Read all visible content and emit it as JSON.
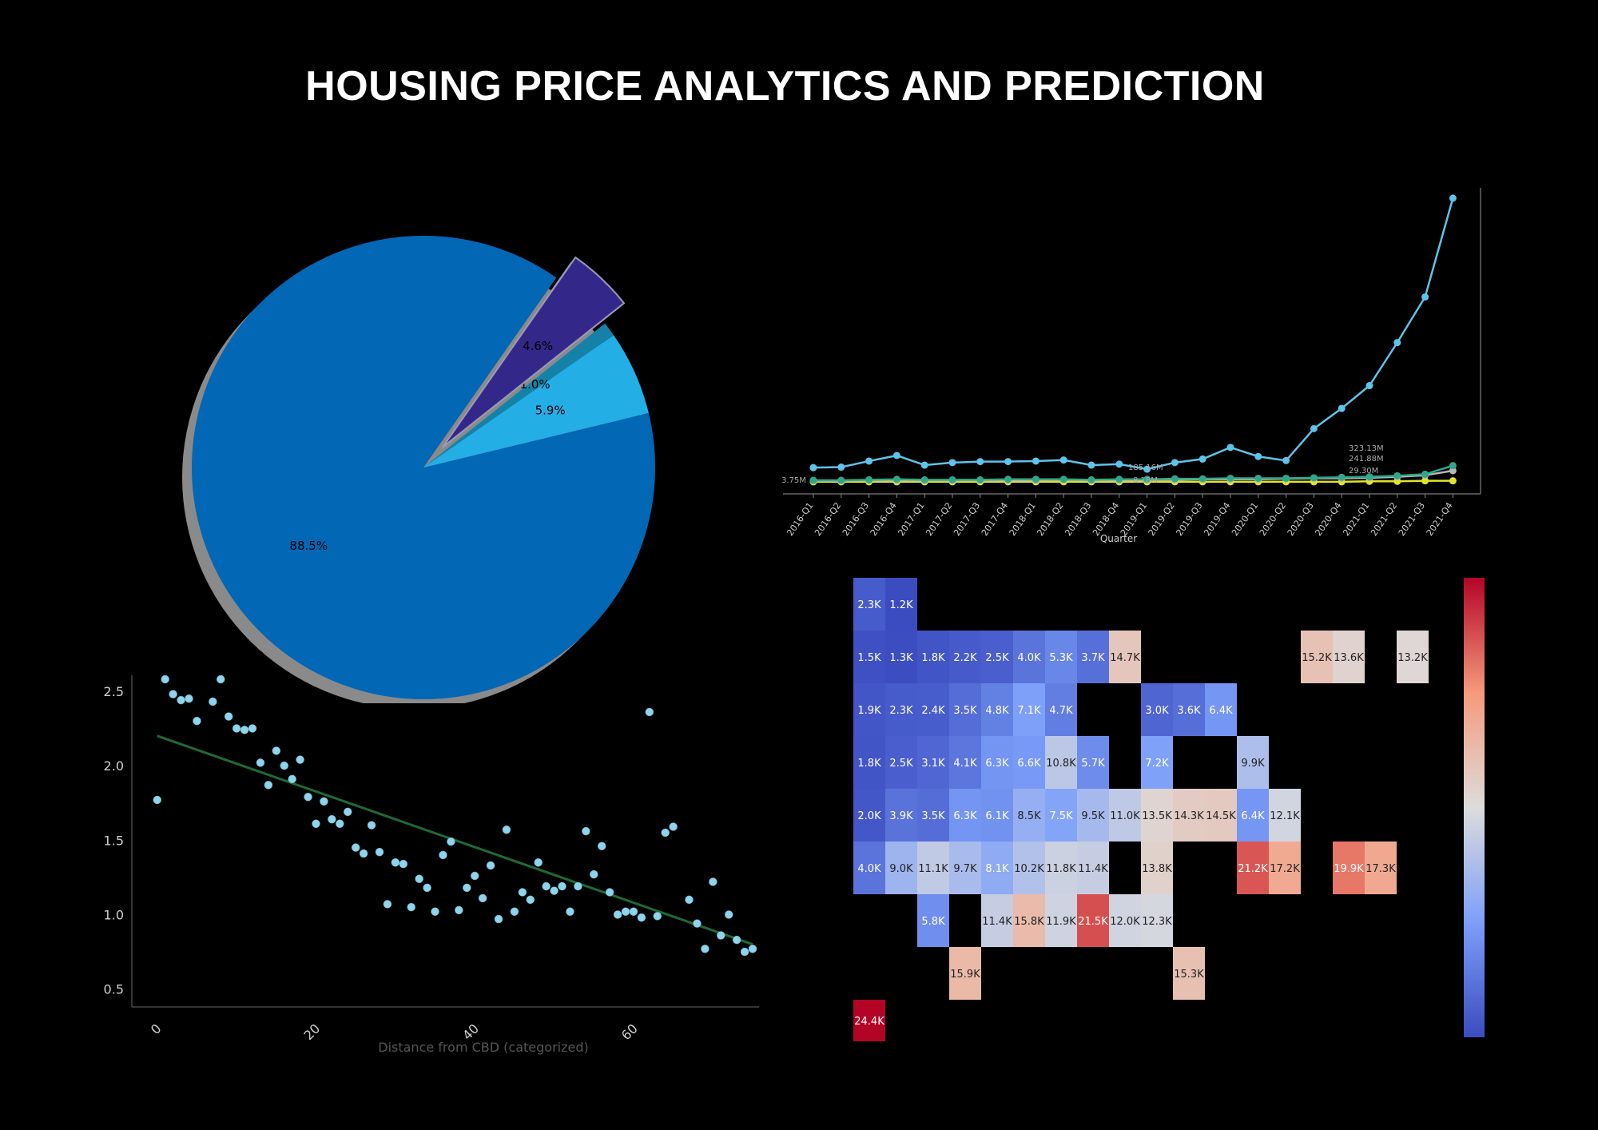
{
  "page": {
    "title": "HOUSING PRICE ANALYTICS AND PREDICTION"
  },
  "chart_data": [
    {
      "type": "pie",
      "labels": [
        "88.5%",
        "5.9%",
        "1.0%",
        "4.6%"
      ],
      "values": [
        88.5,
        5.9,
        1.0,
        4.6
      ],
      "colors": [
        "#0267b5",
        "#24aee6",
        "#1482a8",
        "#33288a"
      ],
      "exploded": [
        false,
        false,
        false,
        true
      ],
      "shadow": true
    },
    {
      "type": "line",
      "x": [
        "2016-Q1",
        "2016-Q2",
        "2016-Q3",
        "2016-Q4",
        "2017-Q1",
        "2017-Q2",
        "2017-Q3",
        "2017-Q4",
        "2018-Q1",
        "2018-Q2",
        "2018-Q3",
        "2018-Q4",
        "2019-Q1",
        "2019-Q2",
        "2019-Q3",
        "2019-Q4",
        "2020-Q1",
        "2020-Q2",
        "2020-Q3",
        "2020-Q4",
        "2021-Q1",
        "2021-Q2",
        "2021-Q3",
        "2021-Q4"
      ],
      "xlabel": "Quarter",
      "series": [
        {
          "color": "#5ec3ea",
          "values": [
            28,
            29,
            41,
            52,
            33,
            38,
            40,
            40,
            41,
            43,
            33,
            35,
            25,
            38,
            45,
            68,
            50,
            42,
            105,
            145,
            190,
            275,
            365,
            560
          ]
        },
        {
          "color": "#2fa88a",
          "values": [
            3,
            3,
            4,
            5,
            4,
            4,
            4,
            5,
            5,
            5,
            4,
            5,
            5,
            6,
            6,
            7,
            7,
            7,
            8,
            9,
            10,
            12,
            15,
            32
          ]
        },
        {
          "color": "#b8b8b8",
          "values": [
            2,
            2,
            3,
            3,
            3,
            3,
            3,
            3,
            3,
            4,
            3,
            3,
            4,
            4,
            5,
            5,
            5,
            6,
            7,
            7,
            8,
            10,
            13,
            22
          ]
        },
        {
          "color": "#e3e32a",
          "values": [
            0,
            0,
            0,
            0,
            0,
            0,
            0,
            0,
            0,
            0,
            0,
            0,
            0,
            0,
            0,
            0,
            0,
            0,
            0,
            0,
            1,
            1,
            2,
            2
          ]
        }
      ],
      "annotations": [
        "3.75M",
        "185.16M",
        "8.18M",
        "323.13M",
        "241.88M",
        "29.30M"
      ]
    },
    {
      "type": "scatter",
      "xlabel": "Distance from CBD (categorized)",
      "x_ticks": [
        "0",
        "20",
        "40",
        "60"
      ],
      "y_ticks": [
        "0.5",
        "1.0",
        "1.5",
        "2.0",
        "2.5"
      ],
      "xlim": [
        -4,
        75
      ],
      "ylim": [
        0.38,
        2.58
      ],
      "point_color": "#8fd3ee",
      "line_color": "#1e6a35",
      "trend": {
        "x": [
          0,
          75
        ],
        "y": [
          2.2,
          0.8
        ]
      },
      "points": [
        [
          0,
          1.77
        ],
        [
          1,
          2.58
        ],
        [
          2,
          2.48
        ],
        [
          3,
          2.44
        ],
        [
          4,
          2.45
        ],
        [
          5,
          2.3
        ],
        [
          7,
          2.43
        ],
        [
          8,
          2.58
        ],
        [
          9,
          2.33
        ],
        [
          10,
          2.25
        ],
        [
          11,
          2.24
        ],
        [
          12,
          2.25
        ],
        [
          13,
          2.02
        ],
        [
          14,
          1.87
        ],
        [
          15,
          2.1
        ],
        [
          16,
          2.0
        ],
        [
          17,
          1.91
        ],
        [
          18,
          2.04
        ],
        [
          19,
          1.79
        ],
        [
          20,
          1.61
        ],
        [
          21,
          1.76
        ],
        [
          22,
          1.64
        ],
        [
          23,
          1.61
        ],
        [
          24,
          1.69
        ],
        [
          25,
          1.45
        ],
        [
          26,
          1.41
        ],
        [
          27,
          1.6
        ],
        [
          28,
          1.42
        ],
        [
          29,
          1.07
        ],
        [
          30,
          1.35
        ],
        [
          31,
          1.34
        ],
        [
          32,
          1.05
        ],
        [
          33,
          1.24
        ],
        [
          34,
          1.18
        ],
        [
          35,
          1.02
        ],
        [
          36,
          1.4
        ],
        [
          37,
          1.49
        ],
        [
          38,
          1.03
        ],
        [
          39,
          1.18
        ],
        [
          40,
          1.26
        ],
        [
          41,
          1.11
        ],
        [
          42,
          1.33
        ],
        [
          43,
          0.97
        ],
        [
          44,
          1.57
        ],
        [
          45,
          1.02
        ],
        [
          46,
          1.15
        ],
        [
          47,
          1.1
        ],
        [
          48,
          1.35
        ],
        [
          49,
          1.19
        ],
        [
          50,
          1.16
        ],
        [
          51,
          1.19
        ],
        [
          52,
          1.02
        ],
        [
          53,
          1.19
        ],
        [
          54,
          1.56
        ],
        [
          55,
          1.27
        ],
        [
          56,
          1.46
        ],
        [
          57,
          1.15
        ],
        [
          58,
          1.0
        ],
        [
          59,
          1.02
        ],
        [
          60,
          1.02
        ],
        [
          61,
          0.98
        ],
        [
          62,
          2.36
        ],
        [
          63,
          0.99
        ],
        [
          64,
          1.55
        ],
        [
          65,
          1.59
        ],
        [
          67,
          1.1
        ],
        [
          68,
          0.94
        ],
        [
          69,
          0.77
        ],
        [
          70,
          1.22
        ],
        [
          71,
          0.86
        ],
        [
          72,
          1.0
        ],
        [
          73,
          0.83
        ],
        [
          74,
          0.75
        ],
        [
          75,
          0.77
        ]
      ]
    },
    {
      "type": "heatmap",
      "colorbar": true,
      "cells": [
        [
          0,
          0,
          2.3,
          "2.3K"
        ],
        [
          0,
          1,
          1.2,
          "1.2K"
        ],
        [
          1,
          0,
          1.5,
          "1.5K"
        ],
        [
          1,
          1,
          1.3,
          "1.3K"
        ],
        [
          1,
          2,
          1.8,
          "1.8K"
        ],
        [
          1,
          3,
          2.2,
          "2.2K"
        ],
        [
          1,
          4,
          2.5,
          "2.5K"
        ],
        [
          1,
          5,
          4.0,
          "4.0K"
        ],
        [
          1,
          6,
          5.3,
          "5.3K"
        ],
        [
          1,
          7,
          3.7,
          "3.7K"
        ],
        [
          1,
          8,
          14.7,
          "14.7K"
        ],
        [
          1,
          14,
          15.2,
          "15.2K"
        ],
        [
          1,
          15,
          13.6,
          "13.6K"
        ],
        [
          1,
          17,
          13.2,
          "13.2K"
        ],
        [
          2,
          0,
          1.9,
          "1.9K"
        ],
        [
          2,
          1,
          2.3,
          "2.3K"
        ],
        [
          2,
          2,
          2.4,
          "2.4K"
        ],
        [
          2,
          3,
          3.5,
          "3.5K"
        ],
        [
          2,
          4,
          4.8,
          "4.8K"
        ],
        [
          2,
          5,
          7.1,
          "7.1K"
        ],
        [
          2,
          6,
          4.7,
          "4.7K"
        ],
        [
          2,
          9,
          3.0,
          "3.0K"
        ],
        [
          2,
          10,
          3.6,
          "3.6K"
        ],
        [
          2,
          11,
          6.4,
          "6.4K"
        ],
        [
          3,
          0,
          1.8,
          "1.8K"
        ],
        [
          3,
          1,
          2.5,
          "2.5K"
        ],
        [
          3,
          2,
          3.1,
          "3.1K"
        ],
        [
          3,
          3,
          4.1,
          "4.1K"
        ],
        [
          3,
          4,
          6.3,
          "6.3K"
        ],
        [
          3,
          5,
          6.6,
          "6.6K"
        ],
        [
          3,
          6,
          10.8,
          "10.8K"
        ],
        [
          3,
          7,
          5.7,
          "5.7K"
        ],
        [
          3,
          9,
          7.2,
          "7.2K"
        ],
        [
          3,
          12,
          9.9,
          "9.9K"
        ],
        [
          4,
          0,
          2.0,
          "2.0K"
        ],
        [
          4,
          1,
          3.9,
          "3.9K"
        ],
        [
          4,
          2,
          3.5,
          "3.5K"
        ],
        [
          4,
          3,
          6.3,
          "6.3K"
        ],
        [
          4,
          4,
          6.1,
          "6.1K"
        ],
        [
          4,
          5,
          8.5,
          "8.5K"
        ],
        [
          4,
          6,
          7.5,
          "7.5K"
        ],
        [
          4,
          7,
          9.5,
          "9.5K"
        ],
        [
          4,
          8,
          11.0,
          "11.0K"
        ],
        [
          4,
          9,
          13.5,
          "13.5K"
        ],
        [
          4,
          10,
          14.3,
          "14.3K"
        ],
        [
          4,
          11,
          14.5,
          "14.5K"
        ],
        [
          4,
          12,
          6.4,
          "6.4K"
        ],
        [
          4,
          13,
          12.1,
          "12.1K"
        ],
        [
          5,
          0,
          4.0,
          "4.0K"
        ],
        [
          5,
          1,
          9.0,
          "9.0K"
        ],
        [
          5,
          2,
          11.1,
          "11.1K"
        ],
        [
          5,
          3,
          9.7,
          "9.7K"
        ],
        [
          5,
          4,
          8.1,
          "8.1K"
        ],
        [
          5,
          5,
          10.2,
          "10.2K"
        ],
        [
          5,
          6,
          11.8,
          "11.8K"
        ],
        [
          5,
          7,
          11.4,
          "11.4K"
        ],
        [
          5,
          9,
          13.8,
          "13.8K"
        ],
        [
          5,
          12,
          21.2,
          "21.2K"
        ],
        [
          5,
          13,
          17.2,
          "17.2K"
        ],
        [
          5,
          15,
          19.9,
          "19.9K"
        ],
        [
          5,
          16,
          17.3,
          "17.3K"
        ],
        [
          6,
          2,
          5.8,
          "5.8K"
        ],
        [
          6,
          4,
          11.4,
          "11.4K"
        ],
        [
          6,
          5,
          15.8,
          "15.8K"
        ],
        [
          6,
          6,
          11.9,
          "11.9K"
        ],
        [
          6,
          7,
          21.5,
          "21.5K"
        ],
        [
          6,
          8,
          12.0,
          "12.0K"
        ],
        [
          6,
          9,
          12.3,
          "12.3K"
        ],
        [
          7,
          3,
          15.9,
          "15.9K"
        ],
        [
          7,
          10,
          15.3,
          "15.3K"
        ],
        [
          8,
          0,
          24.4,
          "24.4K"
        ]
      ],
      "vmin": 1.2,
      "vmax": 24.4
    }
  ]
}
